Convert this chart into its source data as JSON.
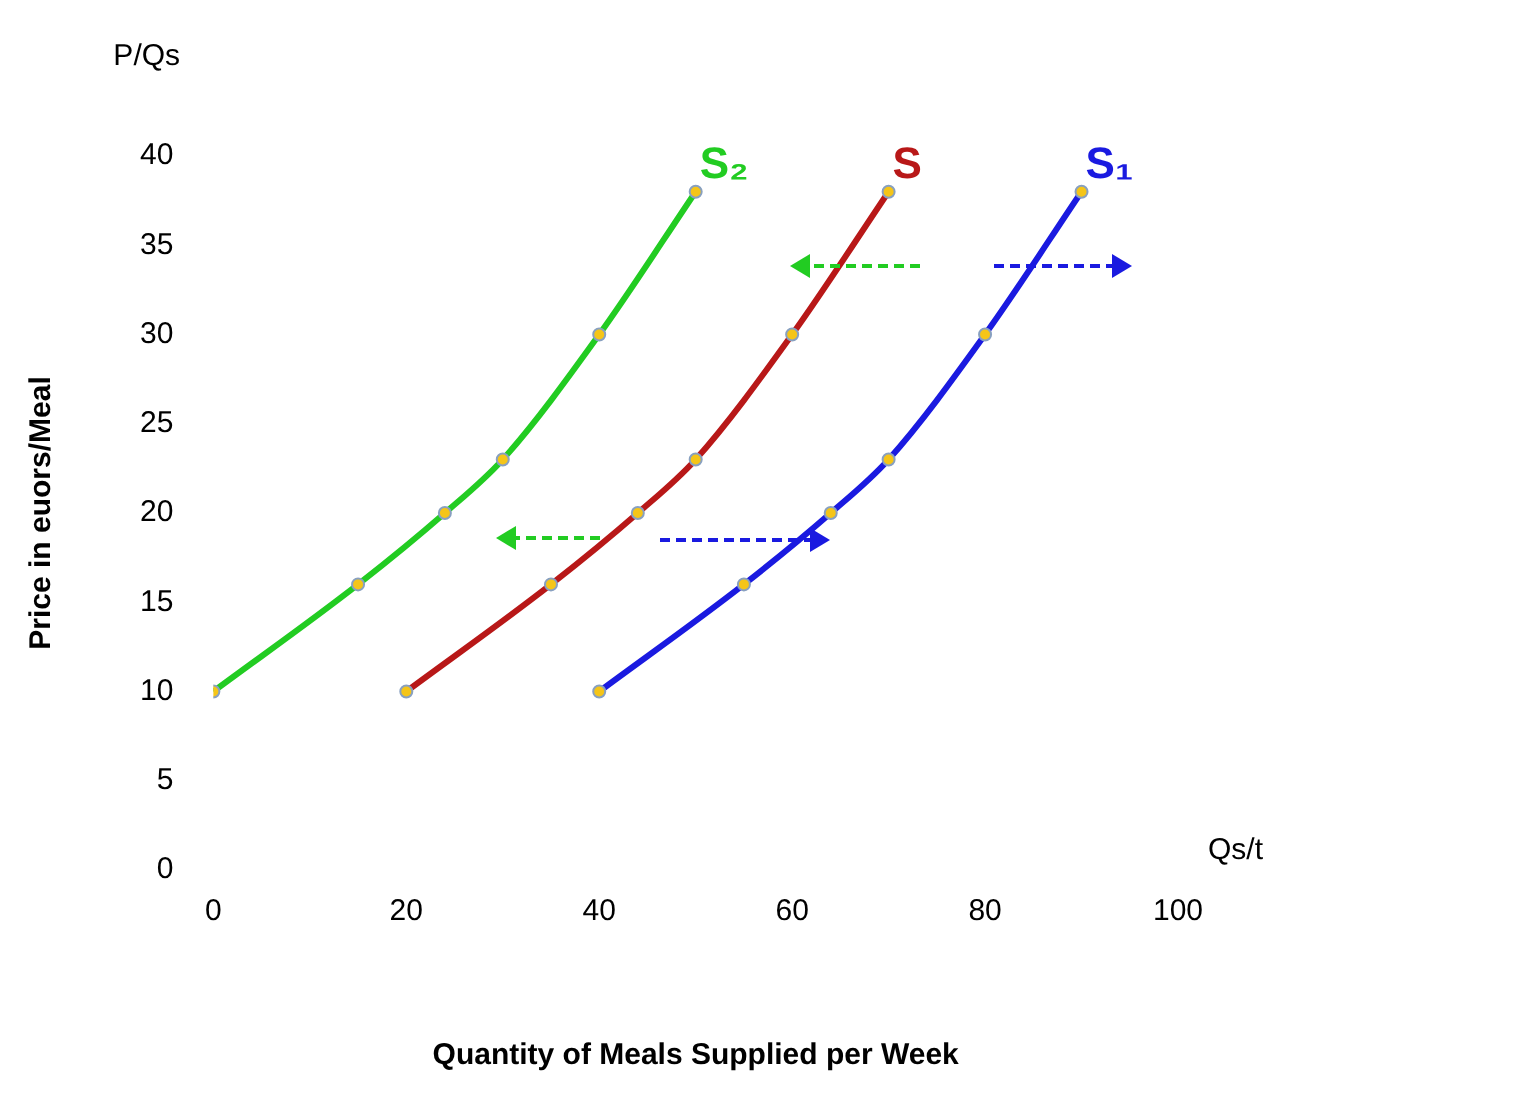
{
  "chart_data": {
    "type": "line",
    "xlabel": "Quantity of Meals Supplied per Week",
    "ylabel": "Price in euors/Meal",
    "annotations": [
      "P/Qs",
      "Qs/t"
    ],
    "xlim": [
      0,
      100
    ],
    "xticks": [
      0,
      20,
      40,
      60,
      80,
      100
    ],
    "ylim": [
      0,
      40
    ],
    "yticks": [
      0,
      5,
      10,
      15,
      20,
      25,
      30,
      35,
      40
    ],
    "grid": false,
    "legend": false,
    "marker": "circle",
    "line_style": "solid",
    "series": [
      {
        "name": "S₂",
        "color": "#22cc22",
        "x": [
          0,
          15,
          24,
          30,
          40,
          50
        ],
        "values": [
          10,
          16,
          20,
          23,
          30,
          38
        ]
      },
      {
        "name": "S",
        "color": "#b81818",
        "x": [
          20,
          35,
          44,
          50,
          60,
          70
        ],
        "values": [
          10,
          16,
          20,
          23,
          30,
          38
        ]
      },
      {
        "name": "S₁",
        "color": "#1a1ae0",
        "x": [
          40,
          55,
          64,
          70,
          80,
          90
        ],
        "values": [
          10,
          16,
          20,
          23,
          30,
          38
        ]
      }
    ]
  }
}
